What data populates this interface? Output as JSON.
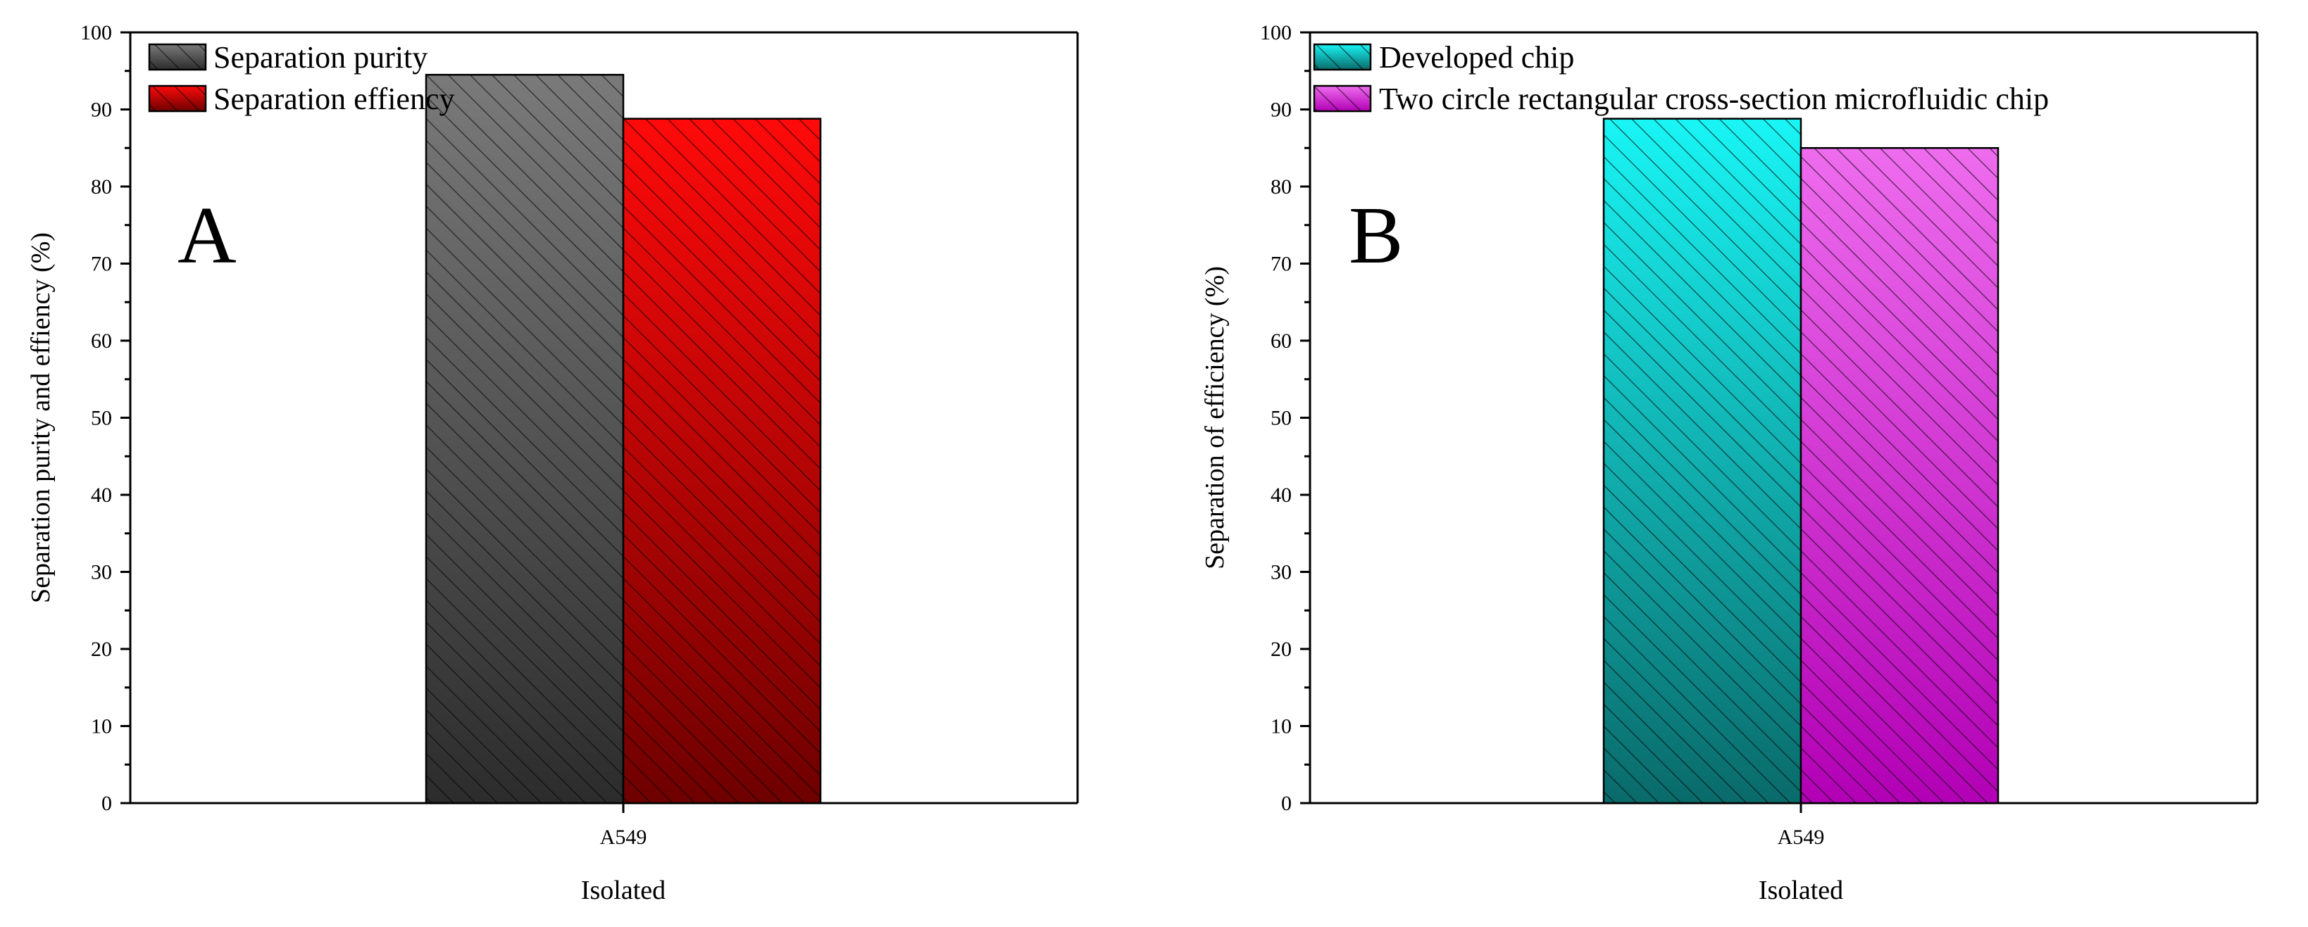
{
  "chart_data": [
    {
      "type": "bar",
      "panel_label": "A",
      "categories": [
        "A549"
      ],
      "series": [
        {
          "name": "Separation purity",
          "values": [
            94.5
          ],
          "color": "#7a7a7a",
          "color_dark": "#2c2c2c",
          "hatch": "diagonal"
        },
        {
          "name": "Separation effiency",
          "values": [
            88.8
          ],
          "color": "#ff0a0a",
          "color_dark": "#6e0000",
          "hatch": "diagonal"
        }
      ],
      "xlabel": "Isolated",
      "ylabel": "Separation purity and effiency (%)",
      "ylim": [
        0,
        100
      ],
      "yticks": [
        "0",
        "10",
        "20",
        "30",
        "40",
        "50",
        "60",
        "70",
        "80",
        "90",
        "100"
      ],
      "grid": false,
      "legend_position": "top-left"
    },
    {
      "type": "bar",
      "panel_label": "B",
      "categories": [
        "A549"
      ],
      "series": [
        {
          "name": "Developed chip",
          "values": [
            88.8
          ],
          "color": "#19f5f5",
          "color_dark": "#0a6a6a",
          "hatch": "diagonal"
        },
        {
          "name": "Two circle rectangular cross-section microfluidic chip",
          "values": [
            85.0
          ],
          "color": "#ee6cee",
          "color_dark": "#b200b5",
          "hatch": "diagonal"
        }
      ],
      "xlabel": "Isolated",
      "ylabel": "Separation of efficiency (%)",
      "ylim": [
        0,
        100
      ],
      "yticks": [
        "0",
        "10",
        "20",
        "30",
        "40",
        "50",
        "60",
        "70",
        "80",
        "90",
        "100"
      ],
      "grid": false,
      "legend_position": "top-left"
    }
  ]
}
